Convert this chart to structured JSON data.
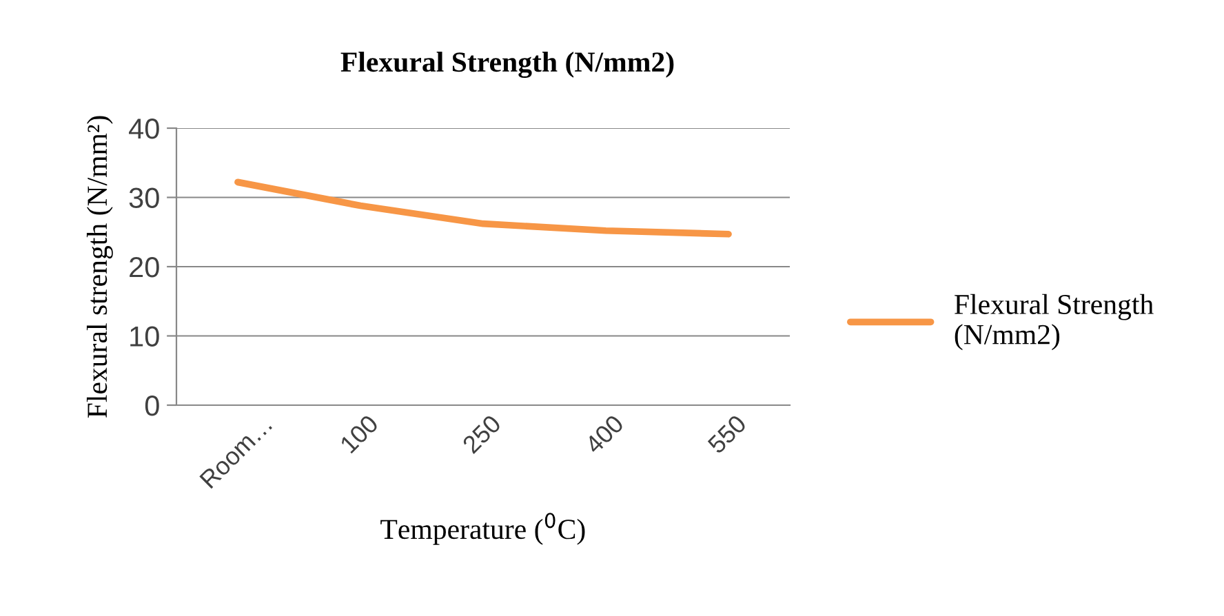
{
  "chart_data": {
    "type": "line",
    "title": "Flexural Strength (N/mm2)",
    "xlabel": "Temperature ($^{0}$C)",
    "ylabel": "Flexural strength (N/mm²)",
    "categories": [
      "Room…",
      "100",
      "250",
      "400",
      "550"
    ],
    "series": [
      {
        "name": "Flexural Strength (N/mm2)",
        "color": "#f79646",
        "values": [
          32.2,
          28.8,
          26.2,
          25.2,
          24.7
        ]
      }
    ],
    "ylim": [
      0,
      40
    ],
    "yticks": [
      0,
      10,
      20,
      30,
      40
    ],
    "grid": "y",
    "legend": "right",
    "marker": "none",
    "line_style": "solid"
  }
}
